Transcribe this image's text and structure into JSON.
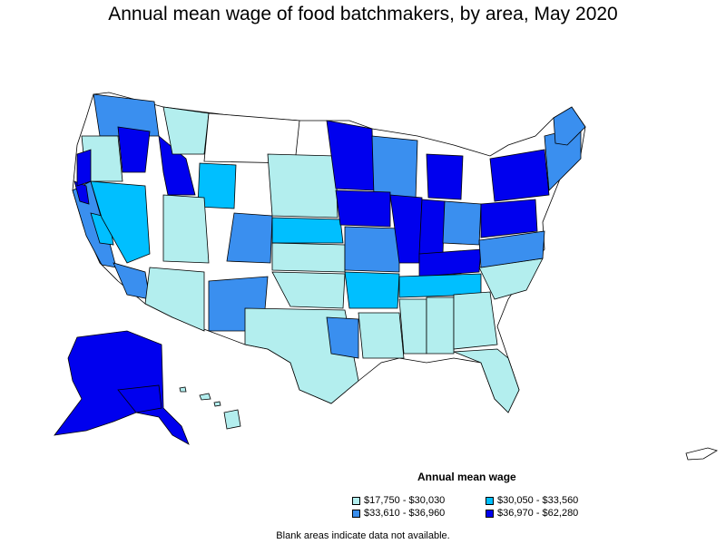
{
  "title": "Annual mean wage of food batchmakers, by area, May 2020",
  "legend": {
    "title": "Annual mean wage",
    "items": [
      {
        "label": "$17,750 - $30,030",
        "color": "#b3eeee"
      },
      {
        "label": "$30,050 - $33,560",
        "color": "#00bfff"
      },
      {
        "label": "$33,610 - $36,960",
        "color": "#3a8fef"
      },
      {
        "label": "$36,970 - $62,280",
        "color": "#0000ee"
      }
    ]
  },
  "note": "Blank areas indicate data not available.",
  "colors": {
    "blank": "#ffffff",
    "border": "#000000"
  }
}
